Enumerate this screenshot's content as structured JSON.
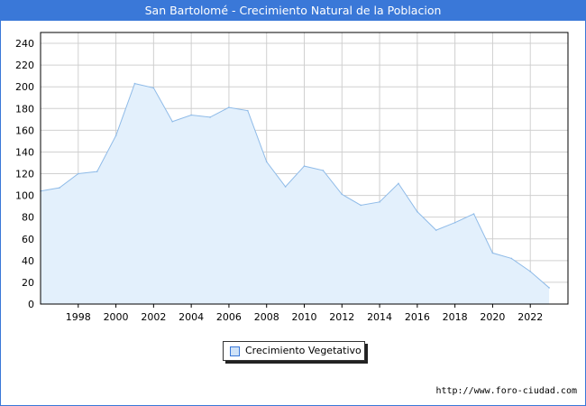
{
  "header": {
    "title": "San Bartolomé - Crecimiento Natural de la Poblacion"
  },
  "footer": {
    "source_url": "http://www.foro-ciudad.com"
  },
  "colors": {
    "header_bg": "#3a78d8",
    "line": "#8fbbe8",
    "fill": "#e3f0fc",
    "grid": "#d0d0d0"
  },
  "chart_data": {
    "type": "area",
    "title": "San Bartolomé - Crecimiento Natural de la Poblacion",
    "xlabel": "",
    "ylabel": "",
    "xlim": [
      1996,
      2024
    ],
    "ylim": [
      0,
      250
    ],
    "grid": true,
    "legend_position": "bottom",
    "x_ticks": [
      1998,
      2000,
      2002,
      2004,
      2006,
      2008,
      2010,
      2012,
      2014,
      2016,
      2018,
      2020,
      2022
    ],
    "y_ticks": [
      0,
      20,
      40,
      60,
      80,
      100,
      120,
      140,
      160,
      180,
      200,
      220,
      240
    ],
    "series": [
      {
        "name": "Crecimiento Vegetativo",
        "x": [
          1996,
          1997,
          1998,
          1999,
          2000,
          2001,
          2002,
          2003,
          2004,
          2005,
          2006,
          2007,
          2008,
          2009,
          2010,
          2011,
          2012,
          2013,
          2014,
          2015,
          2016,
          2017,
          2018,
          2019,
          2020,
          2021,
          2022,
          2023
        ],
        "values": [
          104,
          107,
          120,
          122,
          155,
          203,
          199,
          168,
          174,
          172,
          181,
          178,
          131,
          108,
          127,
          123,
          101,
          91,
          94,
          111,
          85,
          68,
          75,
          83,
          47,
          42,
          30,
          15
        ]
      }
    ]
  }
}
